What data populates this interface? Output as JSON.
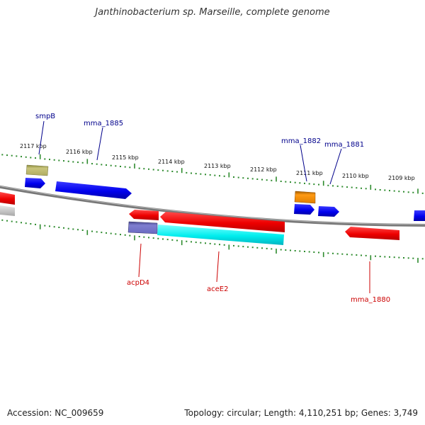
{
  "title": "Janthinobacterium sp. Marseille, complete genome",
  "footer": {
    "accession": "Accession: NC_009659",
    "summary": "Topology: circular; Length: 4,110,251 bp; Genes: 3,749"
  },
  "colors": {
    "backbone": "#888888",
    "tick_track": "#2e8b2e",
    "forward_gene": "#0000ee",
    "reverse_gene": "#ee0000",
    "label_blue": "#00008b",
    "label_red": "#cc0000"
  },
  "scale_ticks": [
    "2117 kbp",
    "2116 kbp",
    "2115 kbp",
    "2114 kbp",
    "2113 kbp",
    "2112 kbp",
    "2111 kbp",
    "2110 kbp",
    "2109 kbp"
  ],
  "gene_labels": {
    "top": [
      "smpB",
      "mma_1885",
      "mma_1882",
      "mma_1881"
    ],
    "bottom": [
      "acpD4",
      "aceE2",
      "mma_1880"
    ]
  }
}
